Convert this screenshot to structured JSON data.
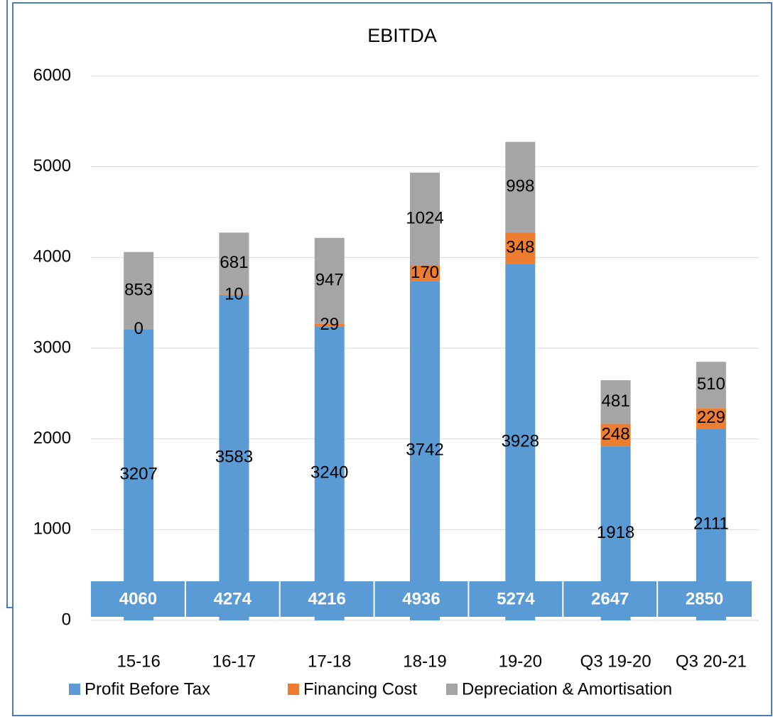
{
  "chart_data": {
    "type": "bar",
    "stacked": true,
    "title": "EBITDA",
    "categories": [
      "15-16",
      "16-17",
      "17-18",
      "18-19",
      "19-20",
      "Q3 19-20",
      "Q3 20-21"
    ],
    "series": [
      {
        "name": "Profit Before Tax",
        "color": "#5b9bd5",
        "values": [
          3207,
          3583,
          3240,
          3742,
          3928,
          1918,
          2111
        ]
      },
      {
        "name": "Financing Cost",
        "color": "#ed7d31",
        "values": [
          0,
          10,
          29,
          170,
          348,
          248,
          229
        ]
      },
      {
        "name": "Depreciation & Amortisation",
        "color": "#a5a5a5",
        "values": [
          853,
          681,
          947,
          1024,
          998,
          481,
          510
        ]
      }
    ],
    "totals": [
      4060,
      4274,
      4216,
      4936,
      5274,
      2647,
      2850
    ],
    "ylim": [
      0,
      6000
    ],
    "yticks": [
      0,
      1000,
      2000,
      3000,
      4000,
      5000,
      6000
    ],
    "grid": true,
    "legend": "bottom"
  }
}
